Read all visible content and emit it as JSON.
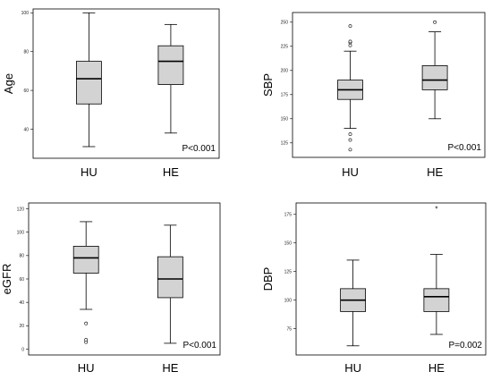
{
  "chart_data": [
    {
      "type": "box",
      "ylabel": "Age",
      "categories": [
        "HU",
        "HE"
      ],
      "ylim": [
        25,
        102
      ],
      "yticks": [
        40,
        60,
        80,
        100
      ],
      "annotation": "P<0.001",
      "boxes": [
        {
          "category": "HU",
          "whisker_low": 31,
          "q1": 53,
          "median": 66,
          "q3": 75,
          "whisker_high": 100,
          "outliers": [],
          "extremes": []
        },
        {
          "category": "HE",
          "whisker_low": 38,
          "q1": 63,
          "median": 75,
          "q3": 83,
          "whisker_high": 94,
          "outliers": [],
          "extremes": []
        }
      ]
    },
    {
      "type": "box",
      "ylabel": "SBP",
      "categories": [
        "HU",
        "HE"
      ],
      "ylim": [
        110,
        260
      ],
      "yticks": [
        125,
        150,
        175,
        200,
        225,
        250
      ],
      "annotation": "P<0.001",
      "boxes": [
        {
          "category": "HU",
          "whisker_low": 140,
          "q1": 170,
          "median": 180,
          "q3": 190,
          "whisker_high": 220,
          "outliers": [
            118,
            128,
            134,
            226,
            229,
            230,
            246
          ],
          "extremes": []
        },
        {
          "category": "HE",
          "whisker_low": 150,
          "q1": 180,
          "median": 190,
          "q3": 205,
          "whisker_high": 240,
          "outliers": [
            250
          ],
          "extremes": []
        }
      ]
    },
    {
      "type": "box",
      "ylabel": "eGFR",
      "categories": [
        "HU",
        "HE"
      ],
      "ylim": [
        -5,
        125
      ],
      "yticks": [
        0,
        20,
        40,
        60,
        80,
        100,
        120
      ],
      "annotation": "P<0.001",
      "boxes": [
        {
          "category": "HU",
          "whisker_low": 34,
          "q1": 65,
          "median": 78,
          "q3": 88,
          "whisker_high": 109,
          "outliers": [
            6,
            8,
            22
          ],
          "extremes": []
        },
        {
          "category": "HE",
          "whisker_low": 5,
          "q1": 44,
          "median": 60,
          "q3": 79,
          "whisker_high": 106,
          "outliers": [],
          "extremes": []
        }
      ]
    },
    {
      "type": "box",
      "ylabel": "DBP",
      "categories": [
        "HU",
        "HE"
      ],
      "ylim": [
        52,
        185
      ],
      "yticks": [
        75,
        100,
        125,
        150,
        175
      ],
      "annotation": "P=0.002",
      "boxes": [
        {
          "category": "HU",
          "whisker_low": 60,
          "q1": 90,
          "median": 100,
          "q3": 110,
          "whisker_high": 135,
          "outliers": [],
          "extremes": []
        },
        {
          "category": "HE",
          "whisker_low": 70,
          "q1": 90,
          "median": 103,
          "q3": 110,
          "whisker_high": 140,
          "outliers": [],
          "extremes": [
            180
          ]
        }
      ]
    }
  ]
}
